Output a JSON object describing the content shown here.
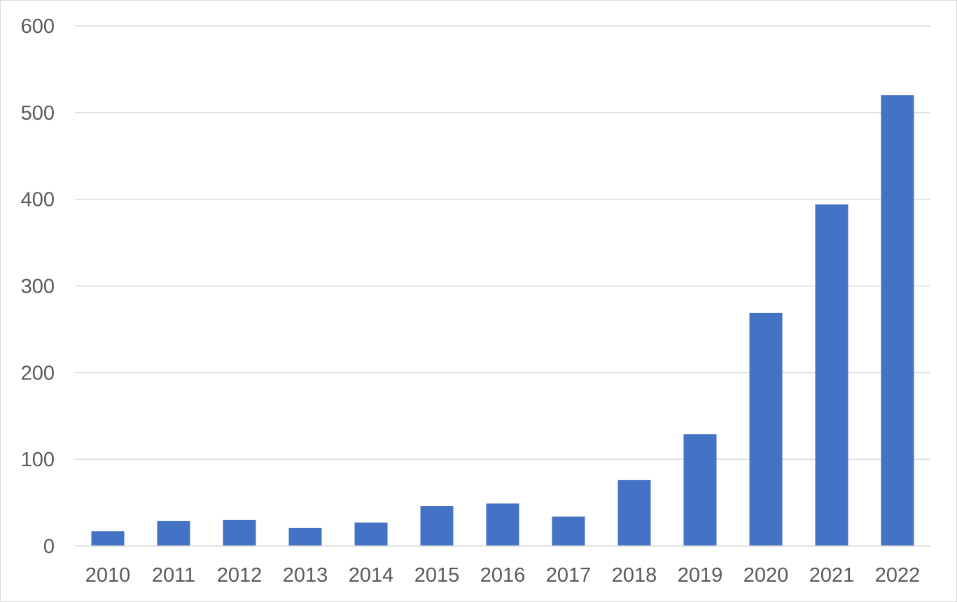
{
  "chart_data": {
    "type": "bar",
    "title": "",
    "xlabel": "",
    "ylabel": "",
    "categories": [
      "2010",
      "2011",
      "2012",
      "2013",
      "2014",
      "2015",
      "2016",
      "2017",
      "2018",
      "2019",
      "2020",
      "2021",
      "2022"
    ],
    "values": [
      17,
      29,
      30,
      21,
      27,
      46,
      49,
      34,
      76,
      129,
      269,
      394,
      520
    ],
    "ylim": [
      0,
      600
    ],
    "yticks": [
      0,
      100,
      200,
      300,
      400,
      500,
      600
    ],
    "ytick_labels": [
      "0",
      "100",
      "200",
      "300",
      "400",
      "500",
      "600"
    ],
    "grid": true,
    "legend": "none",
    "bar_color": "#4472c4",
    "grid_color": "#d9d9d9",
    "label_color": "#595959"
  }
}
